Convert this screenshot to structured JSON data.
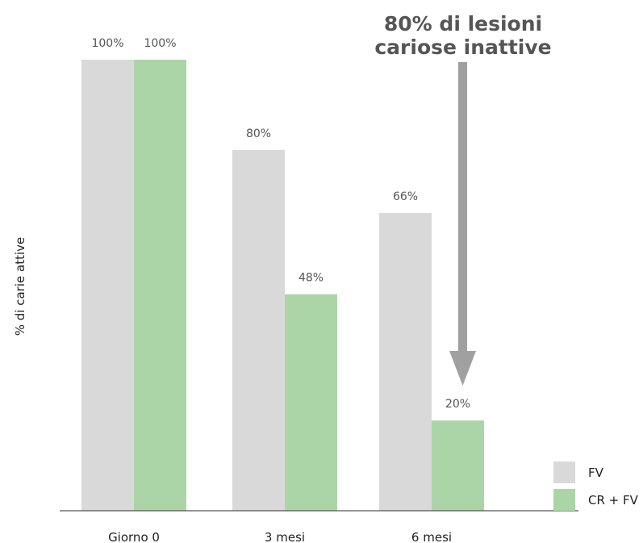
{
  "chart_data": {
    "type": "bar",
    "categories": [
      "Giorno 0",
      "3 mesi",
      "6 mesi"
    ],
    "series": [
      {
        "name": "FV",
        "values": [
          100,
          80,
          66
        ],
        "labels": [
          "100%",
          "80%",
          "66%"
        ],
        "color": "#d9d9d9"
      },
      {
        "name": "CR + FV",
        "values": [
          100,
          48,
          20
        ],
        "labels": [
          "100%",
          "48%",
          "20%"
        ],
        "color": "#acd5a7"
      }
    ],
    "xlabel": "",
    "ylabel": "% di carie attive",
    "ylim": [
      0,
      100
    ],
    "grid": false,
    "legend_position": "bottom-right",
    "annotation": {
      "lines": [
        "80% di lesioni",
        "cariose inattive"
      ],
      "color": "#555555",
      "arrow_color": "#a0a0a0",
      "target": {
        "category": "6 mesi",
        "series": "CR + FV"
      }
    },
    "axis_color": "#555555"
  }
}
